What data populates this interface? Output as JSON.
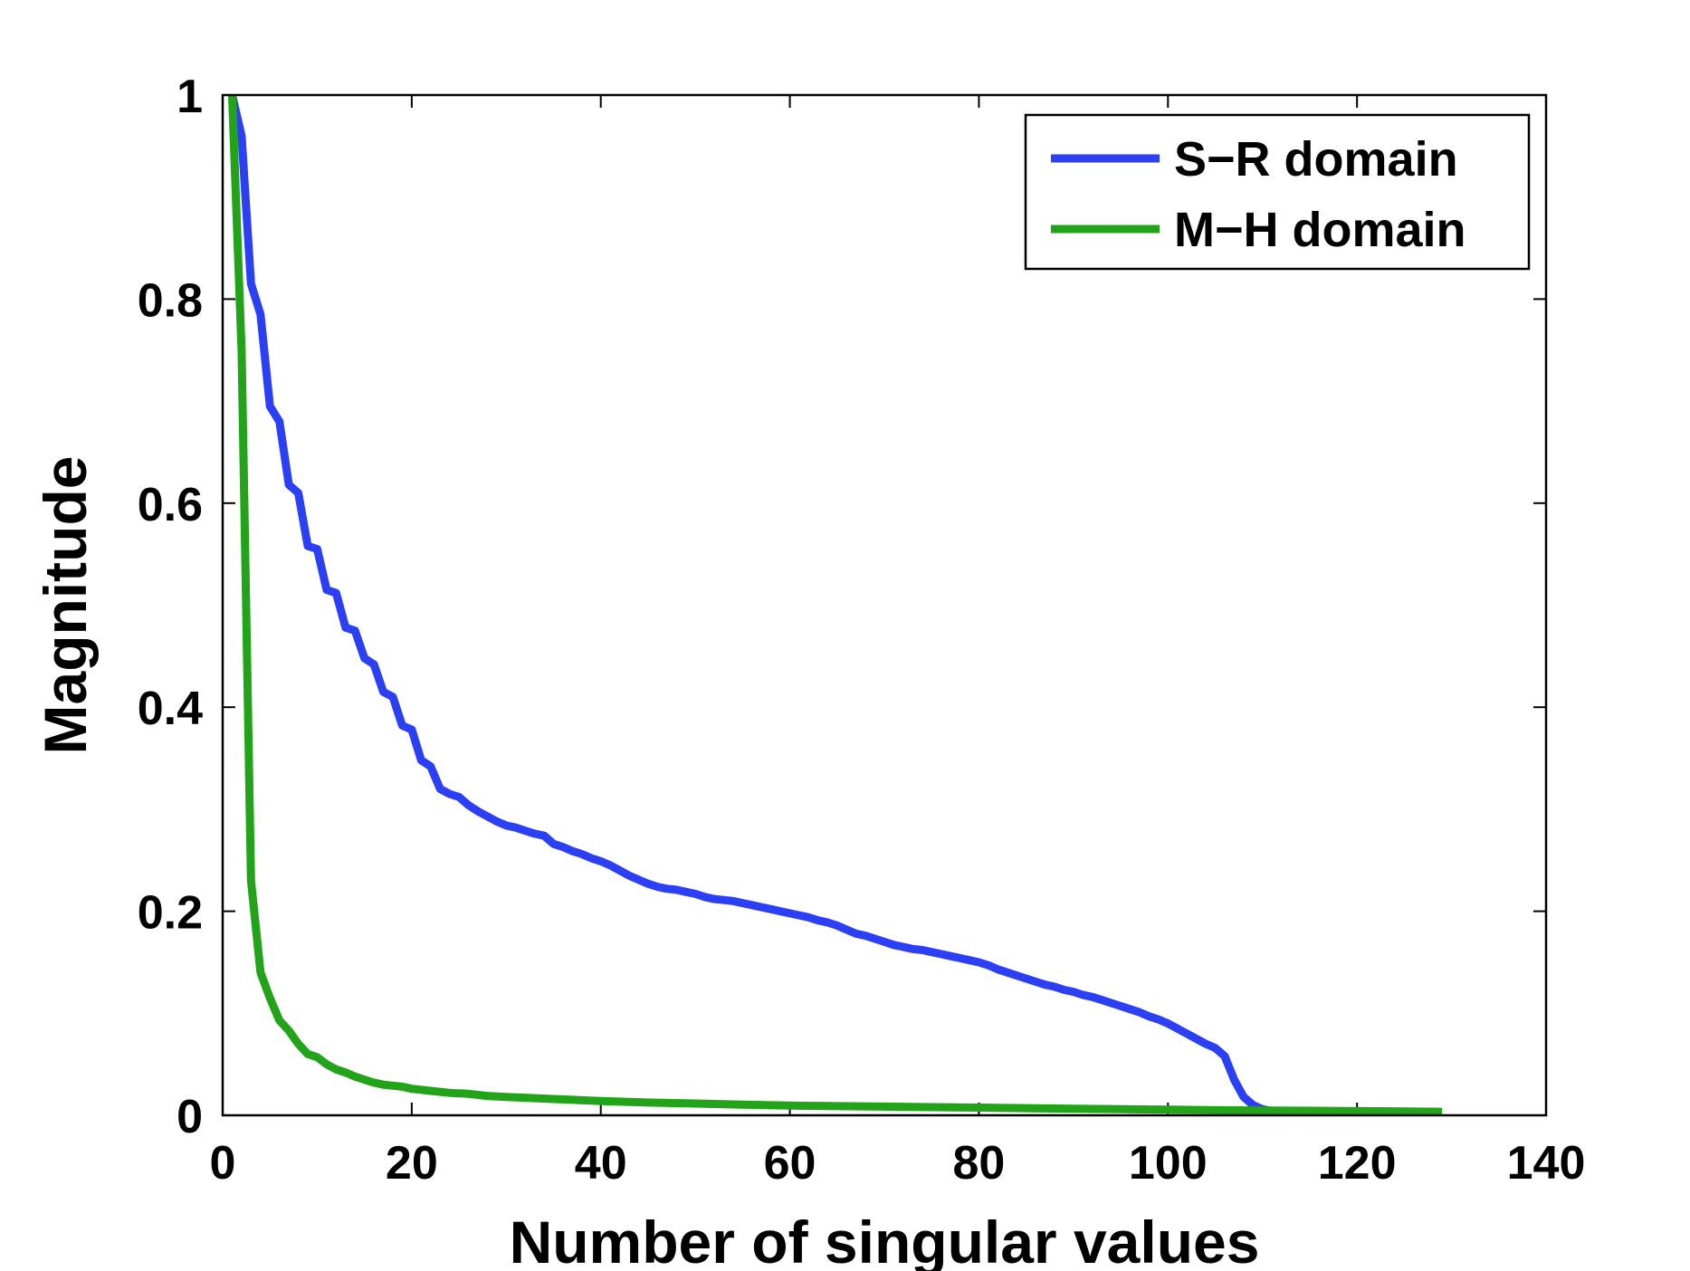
{
  "chart_data": {
    "type": "line",
    "xlabel": "Number of singular values",
    "ylabel": "Magnitude",
    "xlim": [
      0,
      140
    ],
    "ylim": [
      0,
      1
    ],
    "xticks": [
      0,
      20,
      40,
      60,
      80,
      100,
      120,
      140
    ],
    "yticks": [
      0,
      0.2,
      0.4,
      0.6,
      0.8,
      1
    ],
    "xtick_labels": [
      "0",
      "20",
      "40",
      "60",
      "80",
      "100",
      "120",
      "140"
    ],
    "ytick_labels": [
      "0",
      "0.2",
      "0.4",
      "0.6",
      "0.8",
      "1"
    ],
    "grid": false,
    "legend_position": "top-right",
    "series": [
      {
        "name": "S−R domain",
        "color": "#2b3ff5",
        "points": [
          [
            1,
            1.0
          ],
          [
            2,
            0.96
          ],
          [
            3,
            0.815
          ],
          [
            4,
            0.785
          ],
          [
            5,
            0.695
          ],
          [
            6,
            0.68
          ],
          [
            7,
            0.618
          ],
          [
            8,
            0.61
          ],
          [
            9,
            0.558
          ],
          [
            10,
            0.555
          ],
          [
            11,
            0.515
          ],
          [
            12,
            0.512
          ],
          [
            13,
            0.478
          ],
          [
            14,
            0.475
          ],
          [
            15,
            0.448
          ],
          [
            16,
            0.442
          ],
          [
            17,
            0.415
          ],
          [
            18,
            0.41
          ],
          [
            19,
            0.382
          ],
          [
            20,
            0.378
          ],
          [
            21,
            0.348
          ],
          [
            22,
            0.342
          ],
          [
            23,
            0.32
          ],
          [
            24,
            0.315
          ],
          [
            25,
            0.312
          ],
          [
            26,
            0.304
          ],
          [
            27,
            0.298
          ],
          [
            28,
            0.293
          ],
          [
            29,
            0.288
          ],
          [
            30,
            0.284
          ],
          [
            31,
            0.282
          ],
          [
            32,
            0.279
          ],
          [
            33,
            0.276
          ],
          [
            34,
            0.274
          ],
          [
            35,
            0.266
          ],
          [
            36,
            0.263
          ],
          [
            37,
            0.259
          ],
          [
            38,
            0.256
          ],
          [
            39,
            0.252
          ],
          [
            40,
            0.249
          ],
          [
            41,
            0.245
          ],
          [
            42,
            0.24
          ],
          [
            43,
            0.235
          ],
          [
            44,
            0.231
          ],
          [
            45,
            0.227
          ],
          [
            46,
            0.224
          ],
          [
            47,
            0.222
          ],
          [
            48,
            0.221
          ],
          [
            49,
            0.219
          ],
          [
            50,
            0.217
          ],
          [
            51,
            0.214
          ],
          [
            52,
            0.212
          ],
          [
            53,
            0.211
          ],
          [
            54,
            0.21
          ],
          [
            55,
            0.208
          ],
          [
            56,
            0.206
          ],
          [
            57,
            0.204
          ],
          [
            58,
            0.202
          ],
          [
            59,
            0.2
          ],
          [
            60,
            0.198
          ],
          [
            61,
            0.196
          ],
          [
            62,
            0.194
          ],
          [
            63,
            0.191
          ],
          [
            64,
            0.189
          ],
          [
            65,
            0.186
          ],
          [
            66,
            0.182
          ],
          [
            67,
            0.178
          ],
          [
            68,
            0.176
          ],
          [
            69,
            0.173
          ],
          [
            70,
            0.17
          ],
          [
            71,
            0.167
          ],
          [
            72,
            0.165
          ],
          [
            73,
            0.163
          ],
          [
            74,
            0.162
          ],
          [
            75,
            0.16
          ],
          [
            76,
            0.158
          ],
          [
            77,
            0.156
          ],
          [
            78,
            0.154
          ],
          [
            79,
            0.152
          ],
          [
            80,
            0.15
          ],
          [
            81,
            0.147
          ],
          [
            82,
            0.143
          ],
          [
            83,
            0.14
          ],
          [
            84,
            0.137
          ],
          [
            85,
            0.134
          ],
          [
            86,
            0.131
          ],
          [
            87,
            0.128
          ],
          [
            88,
            0.126
          ],
          [
            89,
            0.123
          ],
          [
            90,
            0.121
          ],
          [
            91,
            0.118
          ],
          [
            92,
            0.116
          ],
          [
            93,
            0.113
          ],
          [
            94,
            0.11
          ],
          [
            95,
            0.107
          ],
          [
            96,
            0.104
          ],
          [
            97,
            0.101
          ],
          [
            98,
            0.097
          ],
          [
            99,
            0.094
          ],
          [
            100,
            0.09
          ],
          [
            101,
            0.085
          ],
          [
            102,
            0.08
          ],
          [
            103,
            0.075
          ],
          [
            104,
            0.07
          ],
          [
            105,
            0.066
          ],
          [
            106,
            0.058
          ],
          [
            107,
            0.035
          ],
          [
            108,
            0.018
          ],
          [
            109,
            0.01
          ],
          [
            110,
            0.006
          ],
          [
            111,
            0.004
          ],
          [
            112,
            0.004
          ]
        ]
      },
      {
        "name": "M−H domain",
        "color": "#22a31a",
        "points": [
          [
            1,
            1.0
          ],
          [
            2,
            0.75
          ],
          [
            3,
            0.23
          ],
          [
            4,
            0.14
          ],
          [
            5,
            0.115
          ],
          [
            6,
            0.093
          ],
          [
            7,
            0.083
          ],
          [
            8,
            0.07
          ],
          [
            9,
            0.06
          ],
          [
            10,
            0.057
          ],
          [
            11,
            0.05
          ],
          [
            12,
            0.045
          ],
          [
            13,
            0.042
          ],
          [
            14,
            0.038
          ],
          [
            15,
            0.035
          ],
          [
            16,
            0.032
          ],
          [
            17,
            0.03
          ],
          [
            18,
            0.029
          ],
          [
            19,
            0.028
          ],
          [
            20,
            0.026
          ],
          [
            22,
            0.024
          ],
          [
            24,
            0.022
          ],
          [
            26,
            0.021
          ],
          [
            28,
            0.019
          ],
          [
            30,
            0.018
          ],
          [
            35,
            0.016
          ],
          [
            40,
            0.014
          ],
          [
            45,
            0.0125
          ],
          [
            50,
            0.0115
          ],
          [
            55,
            0.0105
          ],
          [
            60,
            0.0095
          ],
          [
            65,
            0.009
          ],
          [
            70,
            0.0085
          ],
          [
            75,
            0.008
          ],
          [
            80,
            0.0075
          ],
          [
            85,
            0.007
          ],
          [
            90,
            0.0065
          ],
          [
            95,
            0.006
          ],
          [
            100,
            0.0055
          ],
          [
            105,
            0.005
          ],
          [
            110,
            0.0047
          ],
          [
            115,
            0.0044
          ],
          [
            120,
            0.0041
          ],
          [
            125,
            0.0038
          ],
          [
            129,
            0.0035
          ]
        ]
      }
    ]
  }
}
